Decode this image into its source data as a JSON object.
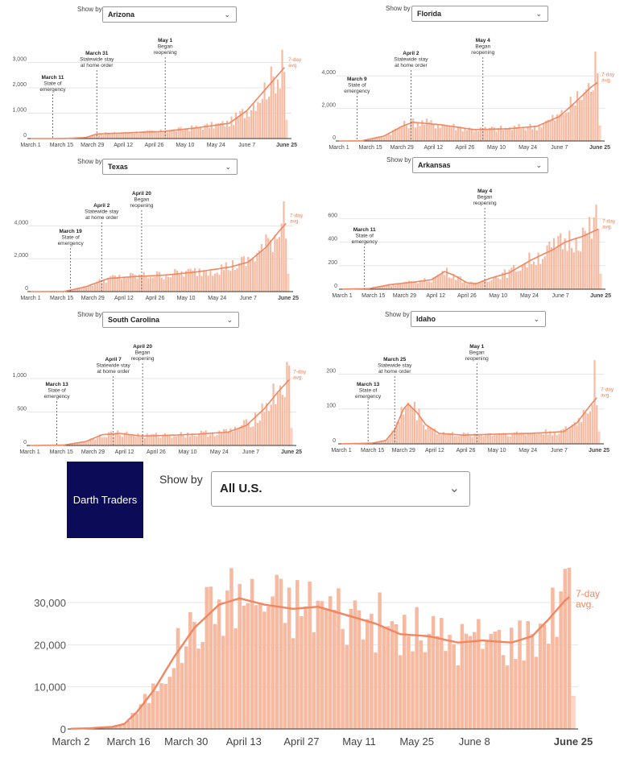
{
  "accent_color": "#f08662",
  "bar_color": "#f7b9a0",
  "panels": [
    {
      "show_by": "Show by",
      "state": "Arizona"
    },
    {
      "show_by": "Show by",
      "state": "Florida"
    },
    {
      "show_by": "Show by",
      "state": "Texas"
    },
    {
      "show_by": "Show by",
      "state": "Arkansas"
    },
    {
      "show_by": "Show by",
      "state": "South Carolina"
    },
    {
      "show_by": "Show by",
      "state": "Idaho"
    }
  ],
  "big": {
    "logo_text": "Darth Traders",
    "show_by": "Show by",
    "selected": "All U.S.",
    "chevron": "chevron-down-icon"
  },
  "chart_data": [
    {
      "type": "bar",
      "state": "Arizona",
      "x_ticks": [
        "March 1",
        "March 15",
        "March 29",
        "April 12",
        "April 26",
        "May 10",
        "May 24",
        "June 7",
        "June 25"
      ],
      "y_ticks": [
        "0",
        "1,000",
        "2,000",
        "3,000"
      ],
      "ylim": [
        0,
        3300
      ],
      "avg_label": [
        "7-day",
        "avg."
      ],
      "annotations": [
        {
          "day": 10,
          "title": "March 11",
          "lines": [
            "State of",
            "emergency"
          ]
        },
        {
          "day": 30,
          "title": "March 31",
          "lines": [
            "Statewide stay",
            "at home order"
          ]
        },
        {
          "day": 61,
          "title": "May 1",
          "lines": [
            "Began",
            "reopening"
          ]
        }
      ],
      "anchors": [
        [
          0,
          0
        ],
        [
          15,
          2
        ],
        [
          25,
          40
        ],
        [
          30,
          180
        ],
        [
          45,
          230
        ],
        [
          60,
          280
        ],
        [
          75,
          420
        ],
        [
          90,
          600
        ],
        [
          98,
          1100
        ],
        [
          105,
          1800
        ],
        [
          112,
          2500
        ],
        [
          116,
          2900
        ]
      ],
      "peak": 3500
    },
    {
      "type": "bar",
      "state": "Florida",
      "x_ticks": [
        "March 1",
        "March 15",
        "March 29",
        "April 12",
        "April 26",
        "May 10",
        "May 24",
        "June 7",
        "June 25"
      ],
      "y_ticks": [
        "0",
        "2,000",
        "4,000"
      ],
      "ylim": [
        0,
        5300
      ],
      "avg_label": [
        "7-day",
        "avg."
      ],
      "annotations": [
        {
          "day": 8,
          "title": "March 9",
          "lines": [
            "State of",
            "emergency"
          ]
        },
        {
          "day": 32,
          "title": "April 2",
          "lines": [
            "Statewide stay",
            "at home order"
          ]
        },
        {
          "day": 64,
          "title": "May 4",
          "lines": [
            "Began",
            "reopening"
          ]
        }
      ],
      "anchors": [
        [
          0,
          0
        ],
        [
          10,
          5
        ],
        [
          20,
          300
        ],
        [
          28,
          900
        ],
        [
          33,
          1150
        ],
        [
          45,
          1000
        ],
        [
          60,
          700
        ],
        [
          75,
          750
        ],
        [
          88,
          900
        ],
        [
          98,
          1500
        ],
        [
          106,
          2500
        ],
        [
          112,
          3300
        ],
        [
          116,
          3700
        ]
      ],
      "peak": 5500
    },
    {
      "type": "bar",
      "state": "Texas",
      "x_ticks": [
        "March 1",
        "March 15",
        "March 29",
        "April 12",
        "April 26",
        "May 10",
        "May 24",
        "June 7",
        "June 25"
      ],
      "y_ticks": [
        "0",
        "2,000",
        "4,000"
      ],
      "ylim": [
        0,
        5200
      ],
      "avg_label": [
        "7-day",
        "avg."
      ],
      "annotations": [
        {
          "day": 18,
          "title": "March 19",
          "lines": [
            "State of",
            "emergency"
          ]
        },
        {
          "day": 32,
          "title": "April 2",
          "lines": [
            "Statewide stay",
            "at home order"
          ]
        },
        {
          "day": 50,
          "title": "April 20",
          "lines": [
            "Began",
            "reopening"
          ]
        }
      ],
      "anchors": [
        [
          0,
          0
        ],
        [
          15,
          5
        ],
        [
          25,
          300
        ],
        [
          35,
          800
        ],
        [
          45,
          900
        ],
        [
          60,
          1000
        ],
        [
          75,
          1200
        ],
        [
          90,
          1500
        ],
        [
          98,
          1800
        ],
        [
          106,
          2700
        ],
        [
          112,
          3700
        ],
        [
          116,
          4300
        ]
      ],
      "peak": 5500
    },
    {
      "type": "bar",
      "state": "Arkansas",
      "x_ticks": [
        "March 1",
        "March 15",
        "March 29",
        "April 12",
        "April 26",
        "May 10",
        "May 24",
        "June 7",
        "June 25"
      ],
      "y_ticks": [
        "0",
        "200",
        "400",
        "600"
      ],
      "ylim": [
        0,
        760
      ],
      "avg_label": [
        "7-day",
        "avg."
      ],
      "annotations": [
        {
          "day": 10,
          "title": "March 11",
          "lines": [
            "State of",
            "emergency"
          ]
        },
        {
          "day": 64,
          "title": "May 4",
          "lines": [
            "Began",
            "reopening"
          ]
        }
      ],
      "anchors": [
        [
          0,
          0
        ],
        [
          12,
          5
        ],
        [
          22,
          40
        ],
        [
          32,
          60
        ],
        [
          40,
          80
        ],
        [
          46,
          150
        ],
        [
          50,
          120
        ],
        [
          56,
          55
        ],
        [
          60,
          45
        ],
        [
          66,
          90
        ],
        [
          75,
          140
        ],
        [
          85,
          250
        ],
        [
          95,
          340
        ],
        [
          100,
          400
        ],
        [
          108,
          450
        ],
        [
          116,
          520
        ]
      ],
      "peak": 720
    },
    {
      "type": "bar",
      "state": "South Carolina",
      "x_ticks": [
        "March 1",
        "March 15",
        "March 29",
        "April 12",
        "April 26",
        "May 10",
        "May 24",
        "June 7",
        "June 25"
      ],
      "y_ticks": [
        "0",
        "500",
        "1,000"
      ],
      "ylim": [
        0,
        1300
      ],
      "avg_label": [
        "7-day",
        "avg."
      ],
      "annotations": [
        {
          "day": 12,
          "title": "March 13",
          "lines": [
            "State of",
            "emergency"
          ]
        },
        {
          "day": 37,
          "title": "April 7",
          "lines": [
            "Statewide stay",
            "at home order"
          ]
        },
        {
          "day": 50,
          "title": "April 20",
          "lines": [
            "Began",
            "reopening"
          ]
        }
      ],
      "anchors": [
        [
          0,
          0
        ],
        [
          15,
          5
        ],
        [
          25,
          60
        ],
        [
          32,
          160
        ],
        [
          40,
          180
        ],
        [
          50,
          140
        ],
        [
          60,
          150
        ],
        [
          75,
          170
        ],
        [
          88,
          200
        ],
        [
          96,
          300
        ],
        [
          104,
          550
        ],
        [
          110,
          800
        ],
        [
          116,
          1020
        ]
      ],
      "peak": 1250
    },
    {
      "type": "bar",
      "state": "Idaho",
      "x_ticks": [
        "March 1",
        "March 15",
        "March 29",
        "April 12",
        "April 26",
        "May 10",
        "May 24",
        "June 7",
        "June 25"
      ],
      "y_ticks": [
        "0",
        "100",
        "200"
      ],
      "ylim": [
        0,
        245
      ],
      "avg_label": [
        "7-day",
        "avg."
      ],
      "annotations": [
        {
          "day": 12,
          "title": "March 13",
          "lines": [
            "State of",
            "emergency"
          ]
        },
        {
          "day": 24,
          "title": "March 25",
          "lines": [
            "Statewide stay",
            "at home order"
          ]
        },
        {
          "day": 61,
          "title": "May 1",
          "lines": [
            "Began",
            "reopening"
          ]
        }
      ],
      "anchors": [
        [
          0,
          0
        ],
        [
          14,
          2
        ],
        [
          20,
          10
        ],
        [
          24,
          40
        ],
        [
          28,
          100
        ],
        [
          30,
          115
        ],
        [
          34,
          90
        ],
        [
          38,
          55
        ],
        [
          44,
          30
        ],
        [
          55,
          25
        ],
        [
          70,
          28
        ],
        [
          85,
          30
        ],
        [
          100,
          35
        ],
        [
          106,
          60
        ],
        [
          112,
          110
        ],
        [
          116,
          140
        ]
      ],
      "peak": 240
    },
    {
      "type": "bar",
      "state": "All U.S.",
      "x_ticks": [
        "March 2",
        "March 16",
        "March 30",
        "April 13",
        "April 27",
        "May 11",
        "May 25",
        "June 8",
        "June 25"
      ],
      "y_ticks": [
        "0",
        "10,000",
        "20,000",
        "30,000"
      ],
      "ylim": [
        0,
        38000
      ],
      "avg_label": [
        "7-day",
        "avg."
      ],
      "anchors": [
        [
          0,
          50
        ],
        [
          5,
          200
        ],
        [
          10,
          500
        ],
        [
          13,
          1200
        ],
        [
          16,
          4000
        ],
        [
          20,
          9000
        ],
        [
          25,
          17000
        ],
        [
          30,
          24000
        ],
        [
          36,
          29500
        ],
        [
          41,
          31000
        ],
        [
          47,
          29500
        ],
        [
          54,
          28500
        ],
        [
          60,
          29000
        ],
        [
          67,
          27000
        ],
        [
          74,
          25000
        ],
        [
          80,
          22500
        ],
        [
          87,
          22000
        ],
        [
          94,
          20500
        ],
        [
          100,
          21000
        ],
        [
          107,
          20500
        ],
        [
          112,
          22000
        ],
        [
          116,
          26000
        ],
        [
          120,
          30500
        ],
        [
          121,
          31300
        ]
      ],
      "peak": 38000
    }
  ]
}
